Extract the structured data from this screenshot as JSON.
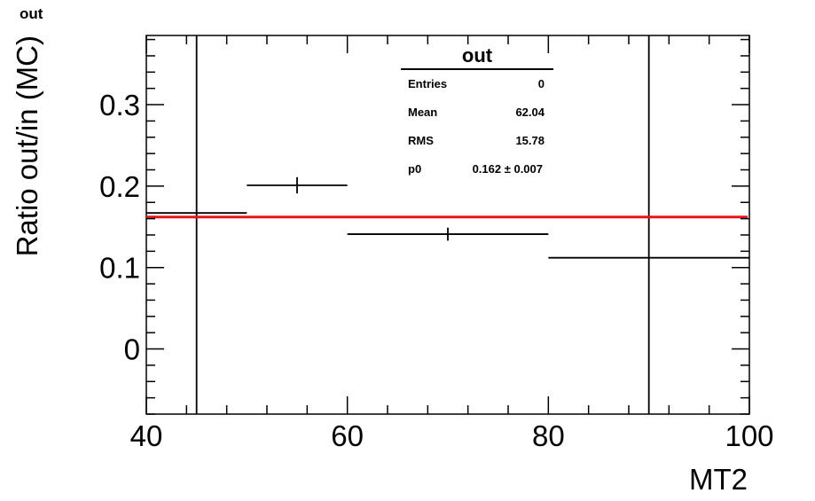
{
  "corner_title": "out",
  "stats": {
    "title": "out",
    "rows": [
      {
        "key": "Entries",
        "value": "0"
      },
      {
        "key": "Mean",
        "value": "62.04"
      },
      {
        "key": "RMS",
        "value": "15.78"
      }
    ],
    "fit": {
      "key": "p0",
      "value": "0.162 ± 0.007"
    }
  },
  "chart_data": {
    "type": "scatter",
    "title": "out",
    "xlabel": "MT2",
    "ylabel": "Ratio out/in (MC)",
    "xlim": [
      40,
      100
    ],
    "ylim": [
      -0.08,
      0.385
    ],
    "xticks": [
      40,
      60,
      80,
      100
    ],
    "xtick_labels": [
      "40",
      "60",
      "80",
      "100"
    ],
    "yticks": [
      0,
      0.1,
      0.2,
      0.3
    ],
    "ytick_labels": [
      "0",
      "0.1",
      "0.2",
      "0.3"
    ],
    "series": [
      {
        "points": [
          {
            "x": 45,
            "y": 0.167,
            "xlow": 40,
            "xhigh": 50,
            "yerr": 0
          },
          {
            "x": 55,
            "y": 0.201,
            "xlow": 50,
            "xhigh": 60,
            "yerr": 0.01
          },
          {
            "x": 70,
            "y": 0.141,
            "xlow": 60,
            "xhigh": 80,
            "yerr": 0.008
          },
          {
            "x": 90,
            "y": 0.112,
            "xlow": 80,
            "xhigh": 100,
            "yerr": 0
          }
        ]
      }
    ],
    "fit_line": {
      "y": 0.162,
      "color": "#e8141b"
    },
    "vertical_lines": [
      45,
      90
    ],
    "grid": false,
    "colors": {
      "points": "#000000",
      "axes": "#000000"
    }
  }
}
